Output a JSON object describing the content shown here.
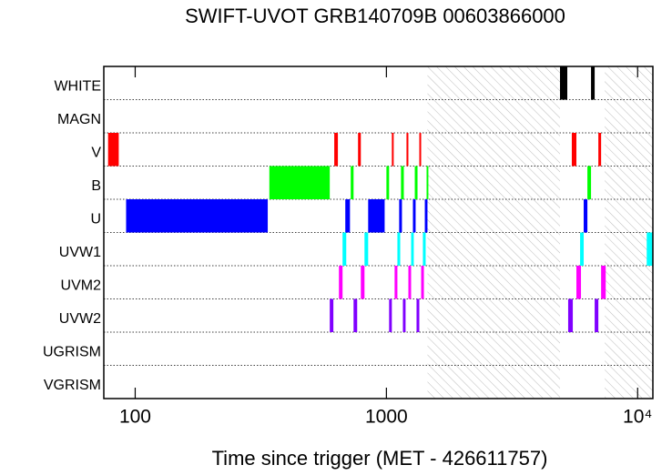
{
  "chart_data": {
    "type": "timeline",
    "title": "SWIFT-UVOT GRB140709B 00603866000",
    "x_label": "Time since trigger (MET - 426611757)",
    "log_x": true,
    "xlim": [
      75,
      11500
    ],
    "xticks": [
      100,
      1000,
      {
        "value": 10000,
        "label": "10⁴"
      }
    ],
    "hatched": [
      [
        1457,
        4909
      ],
      [
        7396,
        11500
      ]
    ],
    "series": [
      {
        "name": "WHITE",
        "color": "#000000",
        "values": [
          [
            4909,
            5248
          ],
          [
            6524,
            6745
          ]
        ]
      },
      {
        "name": "MAGN",
        "color": "#808080",
        "values": []
      },
      {
        "name": "V",
        "color": "#ff0000",
        "values": [
          [
            78,
            86
          ],
          [
            620,
            641
          ],
          [
            771,
            791
          ],
          [
            1051,
            1069
          ],
          [
            1202,
            1223
          ],
          [
            1352,
            1375
          ],
          [
            5470,
            5705
          ],
          [
            6977,
            7155
          ]
        ]
      },
      {
        "name": "B",
        "color": "#00ff00",
        "values": [
          [
            342,
            595
          ],
          [
            721,
            740
          ],
          [
            1000,
            1025
          ],
          [
            1143,
            1173
          ],
          [
            1297,
            1330
          ],
          [
            1445,
            1469
          ],
          [
            6310,
            6524
          ]
        ]
      },
      {
        "name": "U",
        "color": "#0000ff",
        "values": [
          [
            92,
            337
          ],
          [
            686,
            716
          ],
          [
            846,
            984
          ],
          [
            1124,
            1153
          ],
          [
            1275,
            1307
          ],
          [
            1422,
            1457
          ],
          [
            6100,
            6310
          ]
        ]
      },
      {
        "name": "UVW1",
        "color": "#00ffff",
        "values": [
          [
            669,
            692
          ],
          [
            818,
            846
          ],
          [
            1106,
            1135
          ],
          [
            1254,
            1285
          ],
          [
            1397,
            1433
          ],
          [
            5902,
            6100
          ],
          [
            10870,
            11500
          ]
        ]
      },
      {
        "name": "UVM2",
        "color": "#ff00ff",
        "values": [
          [
            647,
            669
          ],
          [
            791,
            818
          ],
          [
            1078,
            1106
          ],
          [
            1223,
            1254
          ],
          [
            1375,
            1410
          ],
          [
            5705,
            5950
          ],
          [
            7155,
            7463
          ]
        ]
      },
      {
        "name": "UVW2",
        "color": "#8000ff",
        "values": [
          [
            595,
            615
          ],
          [
            740,
            765
          ],
          [
            1025,
            1051
          ],
          [
            1163,
            1192
          ],
          [
            1318,
            1352
          ],
          [
            5290,
            5520
          ],
          [
            6745,
            6977
          ]
        ]
      },
      {
        "name": "UGRISM",
        "color": "#808080",
        "values": []
      },
      {
        "name": "VGRISM",
        "color": "#808080",
        "values": []
      }
    ]
  }
}
